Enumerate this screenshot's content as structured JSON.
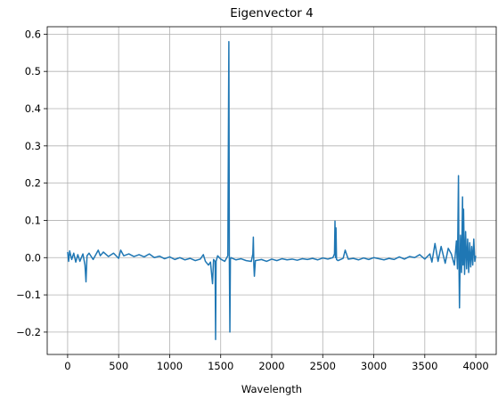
{
  "chart_data": {
    "type": "line",
    "title": "Eigenvector 4",
    "x_label": "Wavelength",
    "series": [
      {
        "name": "Eigenvector 4",
        "color": "#1f77b4",
        "x": [
          0,
          10,
          20,
          40,
          60,
          80,
          100,
          120,
          150,
          170,
          180,
          190,
          210,
          250,
          300,
          320,
          350,
          400,
          450,
          500,
          520,
          550,
          600,
          650,
          700,
          750,
          800,
          850,
          900,
          950,
          1000,
          1050,
          1100,
          1150,
          1200,
          1250,
          1300,
          1330,
          1350,
          1380,
          1400,
          1420,
          1430,
          1445,
          1450,
          1455,
          1470,
          1500,
          1540,
          1570,
          1580,
          1585,
          1590,
          1595,
          1600,
          1650,
          1700,
          1750,
          1800,
          1815,
          1820,
          1825,
          1830,
          1840,
          1900,
          1950,
          2000,
          2050,
          2100,
          2150,
          2200,
          2250,
          2300,
          2350,
          2400,
          2450,
          2500,
          2550,
          2600,
          2615,
          2620,
          2625,
          2630,
          2635,
          2650,
          2700,
          2720,
          2750,
          2800,
          2850,
          2900,
          2950,
          3000,
          3050,
          3100,
          3150,
          3200,
          3250,
          3300,
          3350,
          3400,
          3450,
          3500,
          3550,
          3570,
          3600,
          3630,
          3660,
          3700,
          3730,
          3760,
          3790,
          3810,
          3820,
          3830,
          3835,
          3840,
          3850,
          3860,
          3870,
          3875,
          3880,
          3890,
          3900,
          3910,
          3920,
          3930,
          3940,
          3950,
          3960,
          3970,
          3980,
          3990,
          4000
        ],
        "values": [
          0.015,
          -0.01,
          0.018,
          -0.005,
          0.012,
          -0.012,
          0.008,
          -0.01,
          0.01,
          -0.02,
          -0.065,
          0.005,
          0.012,
          -0.005,
          0.02,
          0.005,
          0.015,
          0.003,
          0.012,
          -0.002,
          0.02,
          0.005,
          0.01,
          0.003,
          0.008,
          0.002,
          0.01,
          0.0,
          0.004,
          -0.003,
          0.002,
          -0.005,
          0.0,
          -0.006,
          -0.002,
          -0.008,
          -0.004,
          0.008,
          -0.01,
          -0.02,
          -0.012,
          -0.07,
          -0.005,
          -0.01,
          -0.22,
          -0.01,
          0.005,
          -0.004,
          -0.01,
          0.005,
          0.58,
          -0.01,
          -0.2,
          -0.005,
          0.0,
          -0.006,
          -0.003,
          -0.008,
          -0.01,
          0.01,
          0.055,
          -0.02,
          -0.05,
          -0.008,
          -0.005,
          -0.01,
          -0.004,
          -0.008,
          -0.003,
          -0.006,
          -0.004,
          -0.007,
          -0.003,
          -0.005,
          -0.002,
          -0.006,
          -0.001,
          -0.004,
          0.0,
          0.01,
          0.098,
          0.0,
          0.08,
          -0.005,
          -0.008,
          -0.002,
          0.02,
          -0.004,
          -0.002,
          -0.006,
          -0.001,
          -0.005,
          0.0,
          -0.003,
          -0.006,
          -0.002,
          -0.005,
          0.002,
          -0.004,
          0.003,
          0.0,
          0.008,
          -0.004,
          0.01,
          -0.012,
          0.038,
          -0.01,
          0.03,
          -0.015,
          0.025,
          0.01,
          -0.02,
          0.045,
          -0.03,
          0.22,
          -0.02,
          -0.135,
          0.06,
          -0.04,
          0.163,
          -0.02,
          0.13,
          -0.045,
          0.07,
          -0.03,
          0.05,
          -0.04,
          0.04,
          -0.025,
          0.03,
          -0.02,
          0.05,
          -0.01,
          0.005
        ]
      }
    ],
    "xlim": [
      -200,
      4200
    ],
    "xticks": [
      0,
      500,
      1000,
      1500,
      2000,
      2500,
      3000,
      3500,
      4000
    ],
    "ylim": [
      -0.26,
      0.62
    ],
    "yticks": [
      {
        "value": -0.2,
        "label": "−0.2"
      },
      {
        "value": -0.1,
        "label": "−0.1"
      },
      {
        "value": 0,
        "label": "0.0"
      },
      0.1,
      0.2,
      0.3,
      0.4,
      0.5,
      0.6
    ],
    "grid": true
  }
}
